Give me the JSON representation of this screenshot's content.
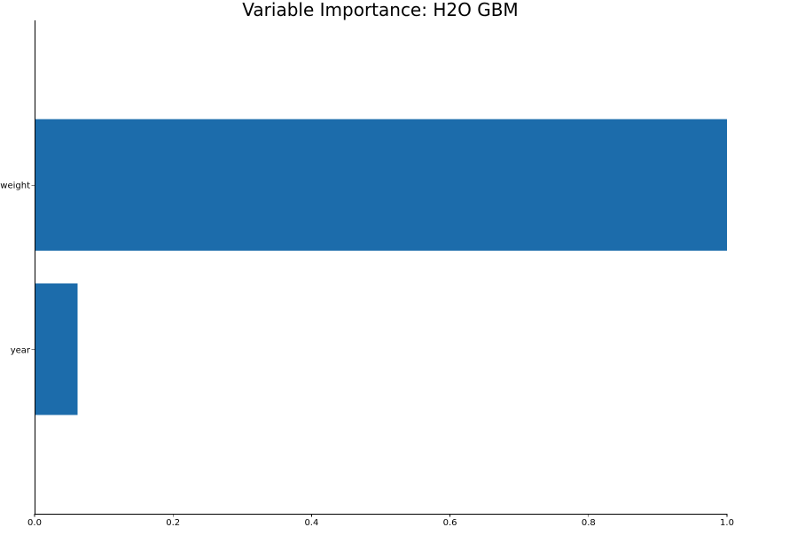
{
  "chart_data": {
    "type": "bar",
    "orientation": "horizontal",
    "title": "Variable Importance: H2O GBM",
    "xlabel": "",
    "ylabel": "",
    "categories": [
      "weight",
      "year"
    ],
    "values": [
      1.0,
      0.062
    ],
    "xlim": [
      0.0,
      1.0
    ],
    "xticks": [
      "0.0",
      "0.2",
      "0.4",
      "0.6",
      "0.8",
      "1.0"
    ],
    "grid": false,
    "legend": "none",
    "bar_color": "#1c6cab"
  }
}
